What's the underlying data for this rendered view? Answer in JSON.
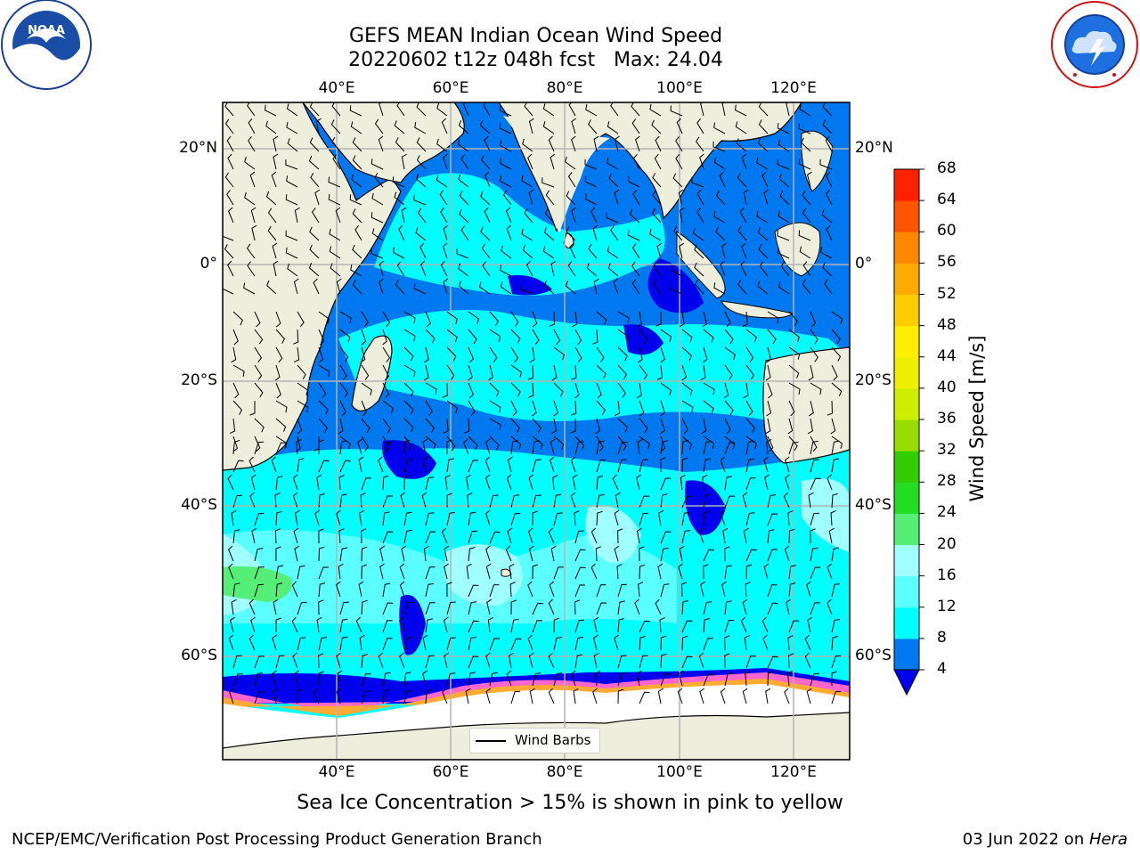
{
  "header": {
    "title_line1": "GEFS MEAN Indian Ocean Wind Speed",
    "title_line2": "20220602 t12z 048h fcst   Max: 24.04"
  },
  "logos": {
    "left": "noaa-logo",
    "right": "national-weather-service-logo"
  },
  "map": {
    "region": "Indian Ocean",
    "lon_range": [
      20,
      129
    ],
    "lat_range": [
      -73,
      28
    ],
    "lon_ticks": [
      "40°E",
      "60°E",
      "80°E",
      "100°E",
      "120°E"
    ],
    "lat_ticks": [
      "20°N",
      "0°",
      "20°S",
      "40°S",
      "60°S"
    ],
    "land_color": "#eeeedd",
    "ice_edge_colors": [
      "#ff66cc",
      "#ffaa33",
      "#ffd700"
    ]
  },
  "colorbar": {
    "label": "Wind Speed [m/s]",
    "ticks": [
      "4",
      "8",
      "12",
      "16",
      "20",
      "24",
      "28",
      "32",
      "36",
      "40",
      "44",
      "48",
      "52",
      "56",
      "60",
      "64",
      "68"
    ],
    "colors": [
      "#0000ee",
      "#0079f0",
      "#00ffff",
      "#5cffff",
      "#a0ffff",
      "#55ee77",
      "#22dd22",
      "#33cc00",
      "#99dd00",
      "#ccee00",
      "#eeee00",
      "#ffee00",
      "#ffcc00",
      "#ffaa00",
      "#ff8800",
      "#ff5500",
      "#ff2200",
      "#ff0000"
    ]
  },
  "legend": {
    "label": "Wind Barbs"
  },
  "caption": "Sea Ice Concentration > 15% is shown in pink to yellow",
  "footer": {
    "left": "NCEP/EMC/Verification Post Processing Product Generation Branch",
    "date": "03 Jun 2022 on ",
    "host": "Hera"
  }
}
